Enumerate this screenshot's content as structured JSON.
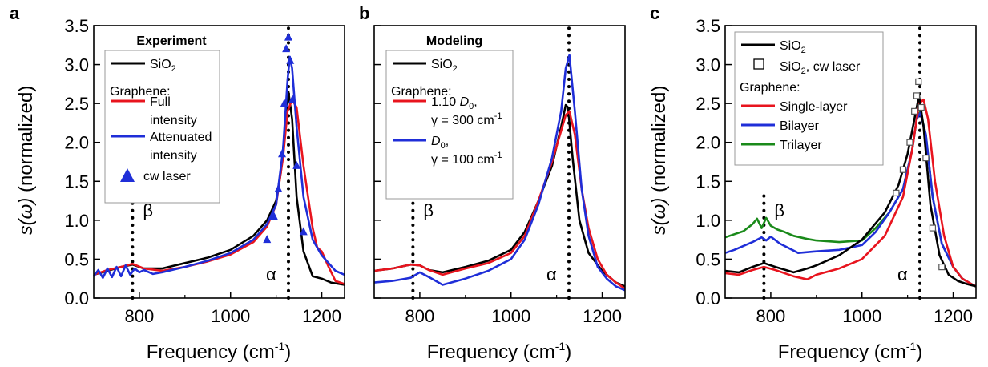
{
  "chart_data": [
    {
      "panel_letter": "a",
      "type": "line",
      "xlabel_main": "Frequency (cm",
      "xlabel_sup": "-1",
      "xlabel_end": ")",
      "ylabel_var": "s(ω)",
      "ylabel_rest": " (normalized)",
      "xlim": [
        700,
        1250
      ],
      "ylim": [
        0,
        3.5
      ],
      "xticks": [
        800,
        1000,
        1200
      ],
      "yticks": [
        0.0,
        0.5,
        1.0,
        1.5,
        2.0,
        2.5,
        3.0,
        3.5
      ],
      "ytick_labels": [
        "0.0",
        "0.5",
        "1.0",
        "1.5",
        "2.0",
        "2.5",
        "3.0",
        "3.5"
      ],
      "legend_title": "Experiment",
      "legend": [
        {
          "kind": "line",
          "color": "#000000",
          "text": "SiO",
          "sub": "2"
        },
        {
          "kind": "head",
          "text": "Graphene:"
        },
        {
          "kind": "line",
          "color": "#e8141e",
          "text": "Full"
        },
        {
          "kind": "cont",
          "text": "intensity"
        },
        {
          "kind": "line",
          "color": "#1f2ed8",
          "text": "Attenuated"
        },
        {
          "kind": "cont",
          "text": "intensity"
        },
        {
          "kind": "triangle",
          "color": "#1f2ed8",
          "text": "cw laser"
        }
      ],
      "vlines": [
        {
          "x": 785,
          "ymax": 1.32,
          "label": "β"
        },
        {
          "x": 1127,
          "ymax": 3.5,
          "label": "α"
        }
      ],
      "series": [
        {
          "color": "#000000",
          "x": [
            700,
            730,
            760,
            785,
            810,
            850,
            900,
            950,
            1000,
            1050,
            1080,
            1100,
            1110,
            1120,
            1127,
            1135,
            1145,
            1160,
            1180,
            1200,
            1220,
            1250
          ],
          "y": [
            0.3,
            0.35,
            0.4,
            0.43,
            0.38,
            0.38,
            0.45,
            0.52,
            0.62,
            0.8,
            1.0,
            1.25,
            1.6,
            2.2,
            2.65,
            2.3,
            1.3,
            0.6,
            0.28,
            0.25,
            0.2,
            0.17
          ]
        },
        {
          "color": "#e8141e",
          "x": [
            700,
            730,
            760,
            785,
            810,
            850,
            900,
            950,
            1000,
            1050,
            1080,
            1100,
            1115,
            1125,
            1135,
            1145,
            1160,
            1180,
            1190,
            1200,
            1215,
            1230,
            1250
          ],
          "y": [
            0.3,
            0.36,
            0.4,
            0.44,
            0.38,
            0.35,
            0.4,
            0.47,
            0.56,
            0.72,
            0.92,
            1.2,
            1.8,
            2.4,
            2.55,
            2.45,
            1.7,
            0.9,
            0.65,
            0.6,
            0.4,
            0.22,
            0.18
          ]
        },
        {
          "color": "#1f2ed8",
          "x": [
            700,
            710,
            720,
            730,
            740,
            750,
            760,
            770,
            780,
            790,
            800,
            810,
            830,
            850,
            900,
            950,
            1000,
            1050,
            1080,
            1100,
            1115,
            1125,
            1130,
            1135,
            1145,
            1160,
            1180,
            1200,
            1215,
            1230,
            1250
          ],
          "y": [
            0.28,
            0.36,
            0.26,
            0.38,
            0.27,
            0.4,
            0.28,
            0.42,
            0.3,
            0.38,
            0.33,
            0.36,
            0.31,
            0.33,
            0.4,
            0.48,
            0.58,
            0.75,
            0.95,
            1.2,
            1.9,
            2.8,
            3.1,
            2.95,
            2.2,
            1.3,
            0.75,
            0.55,
            0.45,
            0.35,
            0.3
          ]
        }
      ],
      "markers": {
        "color": "#1f2ed8",
        "x": [
          1080,
          1095,
          1105,
          1113,
          1118,
          1122,
          1127,
          1131,
          1136,
          1145,
          1160
        ],
        "y": [
          0.75,
          1.05,
          1.4,
          1.85,
          2.5,
          3.2,
          3.35,
          3.05,
          2.55,
          1.7,
          0.85
        ]
      }
    },
    {
      "panel_letter": "b",
      "type": "line",
      "xlabel_main": "Frequency (cm",
      "xlabel_sup": "-1",
      "xlabel_end": ")",
      "xlim": [
        700,
        1250
      ],
      "ylim": [
        0,
        3.5
      ],
      "xticks": [
        800,
        1000,
        1200
      ],
      "yticks": [
        0.0,
        0.5,
        1.0,
        1.5,
        2.0,
        2.5,
        3.0,
        3.5
      ],
      "legend_title": "Modeling",
      "legend": [
        {
          "kind": "line",
          "color": "#000000",
          "text": "SiO",
          "sub": "2"
        },
        {
          "kind": "head",
          "text": "Graphene:"
        },
        {
          "kind": "line",
          "color": "#e8141e",
          "text": "1.10 ",
          "ital": "D",
          "sub": "0",
          "post": ","
        },
        {
          "kind": "cont",
          "text": "γ = 300 cm",
          "sup": "-1"
        },
        {
          "kind": "line",
          "color": "#1f2ed8",
          "ital": "D",
          "sub": "0",
          "post": ","
        },
        {
          "kind": "cont",
          "text": "γ = 100 cm",
          "sup": "-1"
        }
      ],
      "vlines": [
        {
          "x": 785,
          "ymax": 1.32,
          "label": "β"
        },
        {
          "x": 1127,
          "ymax": 3.5,
          "label": "α"
        }
      ],
      "series": [
        {
          "color": "#000000",
          "x": [
            700,
            740,
            780,
            800,
            820,
            850,
            900,
            950,
            1000,
            1030,
            1060,
            1090,
            1110,
            1120,
            1125,
            1135,
            1150,
            1170,
            1200,
            1230,
            1250
          ],
          "y": [
            0.35,
            0.38,
            0.43,
            0.42,
            0.36,
            0.33,
            0.4,
            0.48,
            0.62,
            0.85,
            1.25,
            1.7,
            2.2,
            2.48,
            2.45,
            1.8,
            1.0,
            0.58,
            0.35,
            0.2,
            0.15
          ]
        },
        {
          "color": "#e8141e",
          "x": [
            700,
            740,
            780,
            800,
            820,
            850,
            900,
            950,
            1000,
            1030,
            1060,
            1090,
            1110,
            1120,
            1128,
            1140,
            1155,
            1170,
            1190,
            1210,
            1230,
            1250
          ],
          "y": [
            0.35,
            0.38,
            0.43,
            0.42,
            0.36,
            0.3,
            0.38,
            0.45,
            0.58,
            0.8,
            1.25,
            1.75,
            2.15,
            2.35,
            2.4,
            2.1,
            1.4,
            0.9,
            0.5,
            0.3,
            0.2,
            0.12
          ]
        },
        {
          "color": "#1f2ed8",
          "x": [
            700,
            740,
            780,
            800,
            820,
            850,
            900,
            950,
            1000,
            1030,
            1060,
            1090,
            1110,
            1120,
            1128,
            1140,
            1155,
            1170,
            1190,
            1210,
            1230,
            1250
          ],
          "y": [
            0.2,
            0.22,
            0.26,
            0.33,
            0.27,
            0.17,
            0.25,
            0.35,
            0.5,
            0.75,
            1.2,
            1.8,
            2.4,
            2.95,
            3.12,
            2.4,
            1.4,
            0.8,
            0.4,
            0.25,
            0.15,
            0.1
          ]
        }
      ]
    },
    {
      "panel_letter": "c",
      "type": "line",
      "xlabel_main": "Frequency (cm",
      "xlabel_sup": "-1",
      "xlabel_end": ")",
      "ylabel_var": "s(ω)",
      "ylabel_rest": " (normalized)",
      "xlim": [
        700,
        1250
      ],
      "ylim": [
        0,
        3.5
      ],
      "xticks": [
        800,
        1000,
        1200
      ],
      "yticks": [
        0.0,
        0.5,
        1.0,
        1.5,
        2.0,
        2.5,
        3.0,
        3.5
      ],
      "ytick_labels": [
        "0.0",
        "0.5",
        "1.0",
        "1.5",
        "2.0",
        "2.5",
        "3.0",
        "3.5"
      ],
      "legend": [
        {
          "kind": "line",
          "color": "#000000",
          "text": "SiO",
          "sub": "2"
        },
        {
          "kind": "square",
          "text": "SiO",
          "sub": "2",
          "post": ", cw laser"
        },
        {
          "kind": "head",
          "text": "Graphene:"
        },
        {
          "kind": "line",
          "color": "#e8141e",
          "text": "Single-layer"
        },
        {
          "kind": "line",
          "color": "#1f2ed8",
          "text": "Bilayer"
        },
        {
          "kind": "line",
          "color": "#1a8a1a",
          "text": "Trilayer"
        }
      ],
      "vlines": [
        {
          "x": 785,
          "ymax": 1.32,
          "label": "β"
        },
        {
          "x": 1127,
          "ymax": 3.5,
          "label": "α"
        }
      ],
      "series": [
        {
          "color": "#1a8a1a",
          "x": [
            700,
            720,
            740,
            760,
            770,
            780,
            790,
            800,
            815,
            830,
            850,
            880,
            900,
            950,
            1000,
            1030,
            1060,
            1090,
            1110,
            1120,
            1128,
            1140,
            1155,
            1175,
            1200,
            1220,
            1240,
            1250
          ],
          "y": [
            0.78,
            0.82,
            0.86,
            0.95,
            1.02,
            0.9,
            1.03,
            0.93,
            0.88,
            0.85,
            0.8,
            0.76,
            0.74,
            0.72,
            0.74,
            0.9,
            1.1,
            1.4,
            1.9,
            2.3,
            2.4,
            2.1,
            1.3,
            0.7,
            0.4,
            0.25,
            0.18,
            0.15
          ]
        },
        {
          "color": "#1f2ed8",
          "x": [
            700,
            720,
            740,
            760,
            780,
            790,
            800,
            820,
            840,
            860,
            900,
            950,
            1000,
            1030,
            1060,
            1090,
            1110,
            1120,
            1128,
            1140,
            1155,
            1175,
            1200,
            1220,
            1240,
            1250
          ],
          "y": [
            0.58,
            0.62,
            0.67,
            0.72,
            0.78,
            0.74,
            0.79,
            0.7,
            0.64,
            0.58,
            0.6,
            0.62,
            0.68,
            0.85,
            1.1,
            1.4,
            1.9,
            2.3,
            2.38,
            2.1,
            1.3,
            0.7,
            0.4,
            0.25,
            0.18,
            0.15
          ]
        },
        {
          "color": "#e8141e",
          "x": [
            700,
            730,
            760,
            785,
            810,
            850,
            880,
            900,
            950,
            1000,
            1050,
            1090,
            1110,
            1125,
            1135,
            1145,
            1160,
            1180,
            1200,
            1220,
            1240,
            1250
          ],
          "y": [
            0.32,
            0.3,
            0.36,
            0.4,
            0.36,
            0.28,
            0.24,
            0.3,
            0.38,
            0.5,
            0.8,
            1.3,
            1.9,
            2.5,
            2.55,
            2.3,
            1.5,
            0.8,
            0.4,
            0.25,
            0.18,
            0.15
          ]
        },
        {
          "color": "#000000",
          "x": [
            700,
            730,
            760,
            785,
            810,
            850,
            880,
            900,
            950,
            1000,
            1050,
            1080,
            1100,
            1115,
            1125,
            1135,
            1150,
            1170,
            1190,
            1210,
            1230,
            1250
          ],
          "y": [
            0.35,
            0.33,
            0.4,
            0.45,
            0.4,
            0.33,
            0.38,
            0.42,
            0.55,
            0.75,
            1.1,
            1.45,
            1.85,
            2.3,
            2.6,
            2.2,
            1.2,
            0.55,
            0.3,
            0.22,
            0.18,
            0.15
          ]
        }
      ],
      "markers": {
        "color": "#000000",
        "x": [
          1075,
          1090,
          1105,
          1115,
          1120,
          1124,
          1130,
          1140,
          1155,
          1175
        ],
        "y": [
          1.35,
          1.65,
          2.0,
          2.4,
          2.6,
          2.78,
          2.45,
          1.8,
          0.9,
          0.4
        ]
      }
    }
  ]
}
